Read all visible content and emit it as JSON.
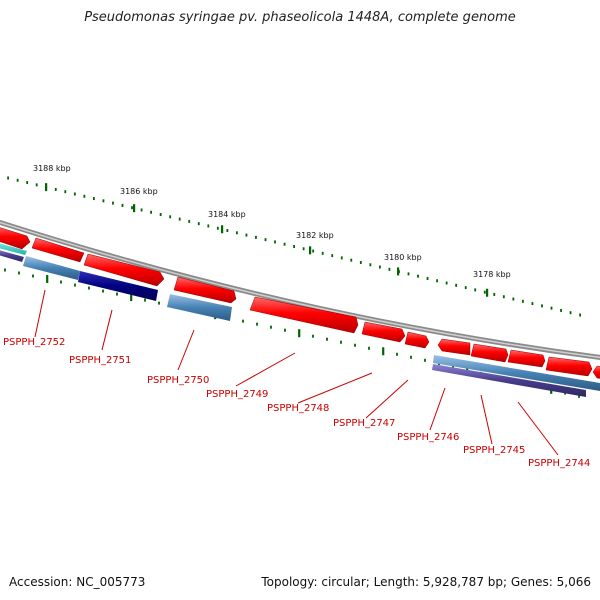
{
  "title": "Pseudomonas syringae pv. phaseolicola 1448A, complete genome",
  "accession_label": "Accession: NC_005773",
  "topology_label": "Topology: circular; Length: 5,928,787 bp; Genes: 5,066",
  "colors": {
    "background": "#ffffff",
    "backbone": "#808080",
    "forward_gene": "#ff0000",
    "cds_blue": "#4682b4",
    "cds_navy": "#000080",
    "cds_purple": "#483d8b",
    "cds_teal": "#20b2aa",
    "tick": "#006400",
    "label": "#cc0000"
  },
  "ruler": [
    {
      "label": "3188 kbp"
    },
    {
      "label": "3186 kbp"
    },
    {
      "label": "3184 kbp"
    },
    {
      "label": "3182 kbp"
    },
    {
      "label": "3180 kbp"
    },
    {
      "label": "3178 kbp"
    }
  ],
  "genes": [
    {
      "label": "PSPPH_2752"
    },
    {
      "label": "PSPPH_2751"
    },
    {
      "label": "PSPPH_2750"
    },
    {
      "label": "PSPPH_2749"
    },
    {
      "label": "PSPPH_2748"
    },
    {
      "label": "PSPPH_2747"
    },
    {
      "label": "PSPPH_2746"
    },
    {
      "label": "PSPPH_2745"
    },
    {
      "label": "PSPPH_2744"
    }
  ]
}
